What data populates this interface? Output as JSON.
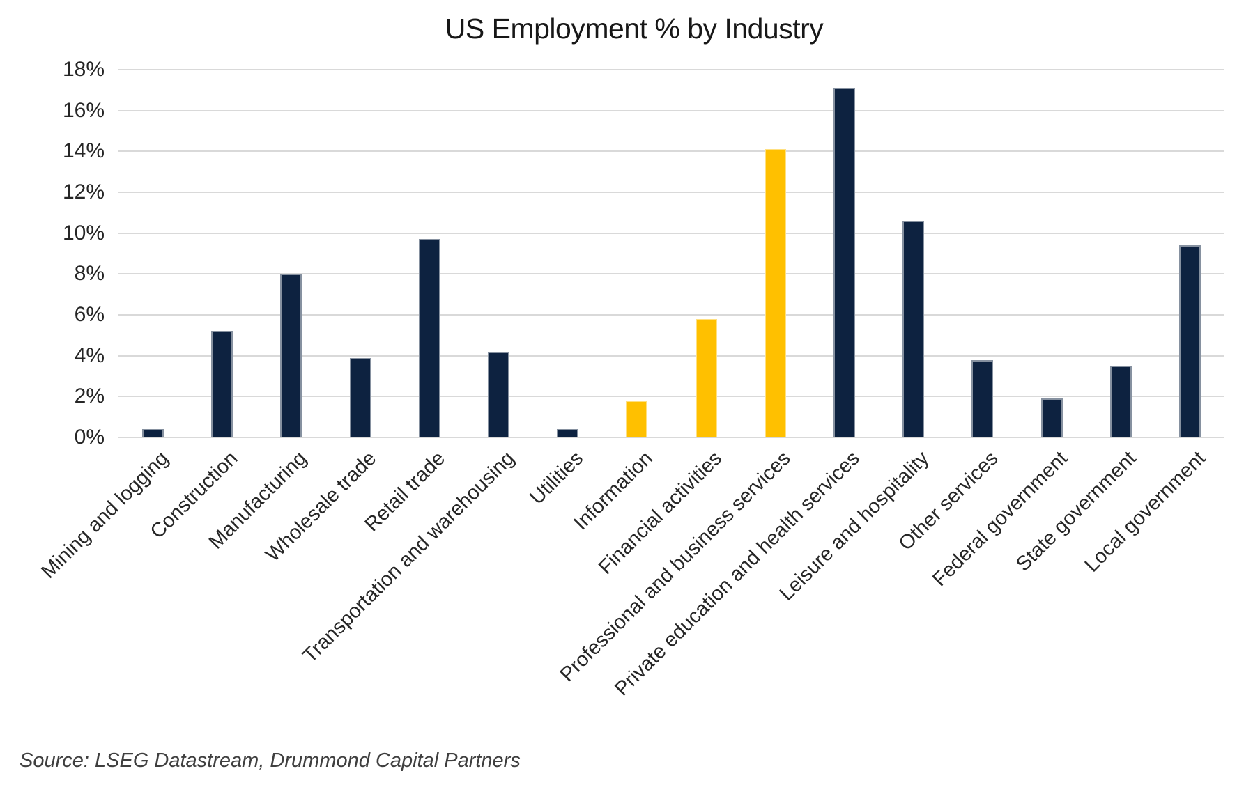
{
  "title": "US Employment % by Industry",
  "source_note": "Source: LSEG Datastream, Drummond Capital Partners",
  "colors": {
    "bar_default": "#0d2240",
    "bar_highlight": "#ffc000",
    "gridline": "#d9d9d9",
    "axis_text": "#262626",
    "title_text": "#171717",
    "source_text": "#3f3f3f",
    "background": "#ffffff"
  },
  "chart_data": {
    "type": "bar",
    "title": "US Employment % by Industry",
    "xlabel": "",
    "ylabel": "",
    "ylim": [
      0,
      18
    ],
    "ytick_step": 2,
    "yticks": [
      "0%",
      "2%",
      "4%",
      "6%",
      "8%",
      "10%",
      "12%",
      "14%",
      "16%",
      "18%"
    ],
    "grid": true,
    "legend": false,
    "categories": [
      "Mining and logging",
      "Construction",
      "Manufacturing",
      "Wholesale trade",
      "Retail trade",
      "Transportation and warehousing",
      "Utilities",
      "Information",
      "Financial activities",
      "Professional and business services",
      "Private education and health services",
      "Leisure and hospitality",
      "Other services",
      "Federal government",
      "State government",
      "Local government"
    ],
    "values": [
      0.4,
      5.2,
      8.0,
      3.9,
      9.7,
      4.2,
      0.4,
      1.8,
      5.8,
      14.1,
      17.1,
      10.6,
      3.8,
      1.9,
      3.5,
      9.4
    ],
    "highlighted_categories": [
      "Information",
      "Financial activities",
      "Professional and business services"
    ],
    "unit": "%"
  }
}
